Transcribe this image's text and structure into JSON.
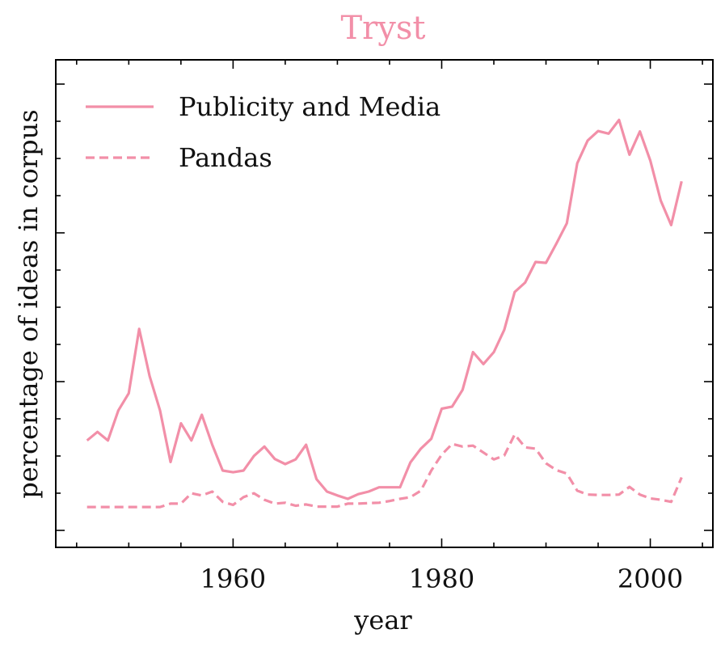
{
  "chart_data": {
    "type": "line",
    "title": "Tryst",
    "xlabel": "year",
    "ylabel": "percentage of ideas in corpus",
    "xlim": [
      1943,
      2006
    ],
    "ylim": [
      0,
      100
    ],
    "xticks": [
      1960,
      1980,
      2000
    ],
    "yticks_labeled": false,
    "grid": false,
    "legend_position": "top-left",
    "color": "#f28fa8",
    "series": [
      {
        "name": "Publicity and Media",
        "style": "solid",
        "x": [
          1946,
          1947,
          1948,
          1949,
          1950,
          1951,
          1952,
          1953,
          1954,
          1955,
          1956,
          1957,
          1958,
          1959,
          1960,
          1961,
          1962,
          1963,
          1964,
          1965,
          1966,
          1967,
          1968,
          1969,
          1970,
          1971,
          1972,
          1973,
          1974,
          1975,
          1976,
          1977,
          1978,
          1979,
          1980,
          1981,
          1982,
          1983,
          1984,
          1985,
          1986,
          1987,
          1988,
          1989,
          1990,
          1991,
          1992,
          1993,
          1994,
          1995,
          1996,
          1997,
          1998,
          1999,
          2000,
          2001,
          2002,
          2003
        ],
        "y": [
          20,
          22,
          20,
          27,
          31,
          46,
          35,
          27,
          15,
          24,
          20,
          26,
          19,
          13,
          12.6,
          13,
          16.4,
          18.6,
          15.7,
          14.5,
          15.6,
          19,
          11,
          8.1,
          7.2,
          6.4,
          7.5,
          8.1,
          9.1,
          9.1,
          9.1,
          14.9,
          18.1,
          20.4,
          27.4,
          27.9,
          31.8,
          40.6,
          37.8,
          40.6,
          45.8,
          54.6,
          56.8,
          61.6,
          61.4,
          65.9,
          70.6,
          84.6,
          89.9,
          92.1,
          91.5,
          94.7,
          86.6,
          92,
          85.2,
          75.9,
          70.2,
          80.4
        ]
      },
      {
        "name": "Pandas",
        "style": "dashed",
        "x": [
          1946,
          1947,
          1948,
          1949,
          1950,
          1951,
          1952,
          1953,
          1954,
          1955,
          1956,
          1957,
          1958,
          1959,
          1960,
          1961,
          1962,
          1963,
          1964,
          1965,
          1966,
          1967,
          1968,
          1969,
          1970,
          1971,
          1972,
          1973,
          1974,
          1975,
          1976,
          1977,
          1978,
          1979,
          1980,
          1981,
          1982,
          1983,
          1984,
          1985,
          1986,
          1987,
          1988,
          1989,
          1990,
          1991,
          1992,
          1993,
          1994,
          1995,
          1996,
          1997,
          1998,
          1999,
          2000,
          2001,
          2002,
          2003
        ],
        "y": [
          4.5,
          4.5,
          4.5,
          4.5,
          4.5,
          4.5,
          4.5,
          4.5,
          5.3,
          5.3,
          7.7,
          7.2,
          8.1,
          5.7,
          5,
          6.8,
          7.7,
          6.2,
          5.3,
          5.5,
          4.8,
          5.1,
          4.6,
          4.6,
          4.6,
          5.3,
          5.3,
          5.4,
          5.5,
          5.9,
          6.4,
          6.8,
          8.3,
          13,
          16.7,
          19.2,
          18.6,
          18.8,
          17.2,
          15.6,
          16.5,
          21.4,
          18.4,
          18.1,
          14.7,
          13.1,
          12.3,
          8.3,
          7.4,
          7.3,
          7.3,
          7.4,
          9.2,
          7.4,
          6.5,
          6.2,
          5.7,
          11.4
        ]
      }
    ]
  }
}
